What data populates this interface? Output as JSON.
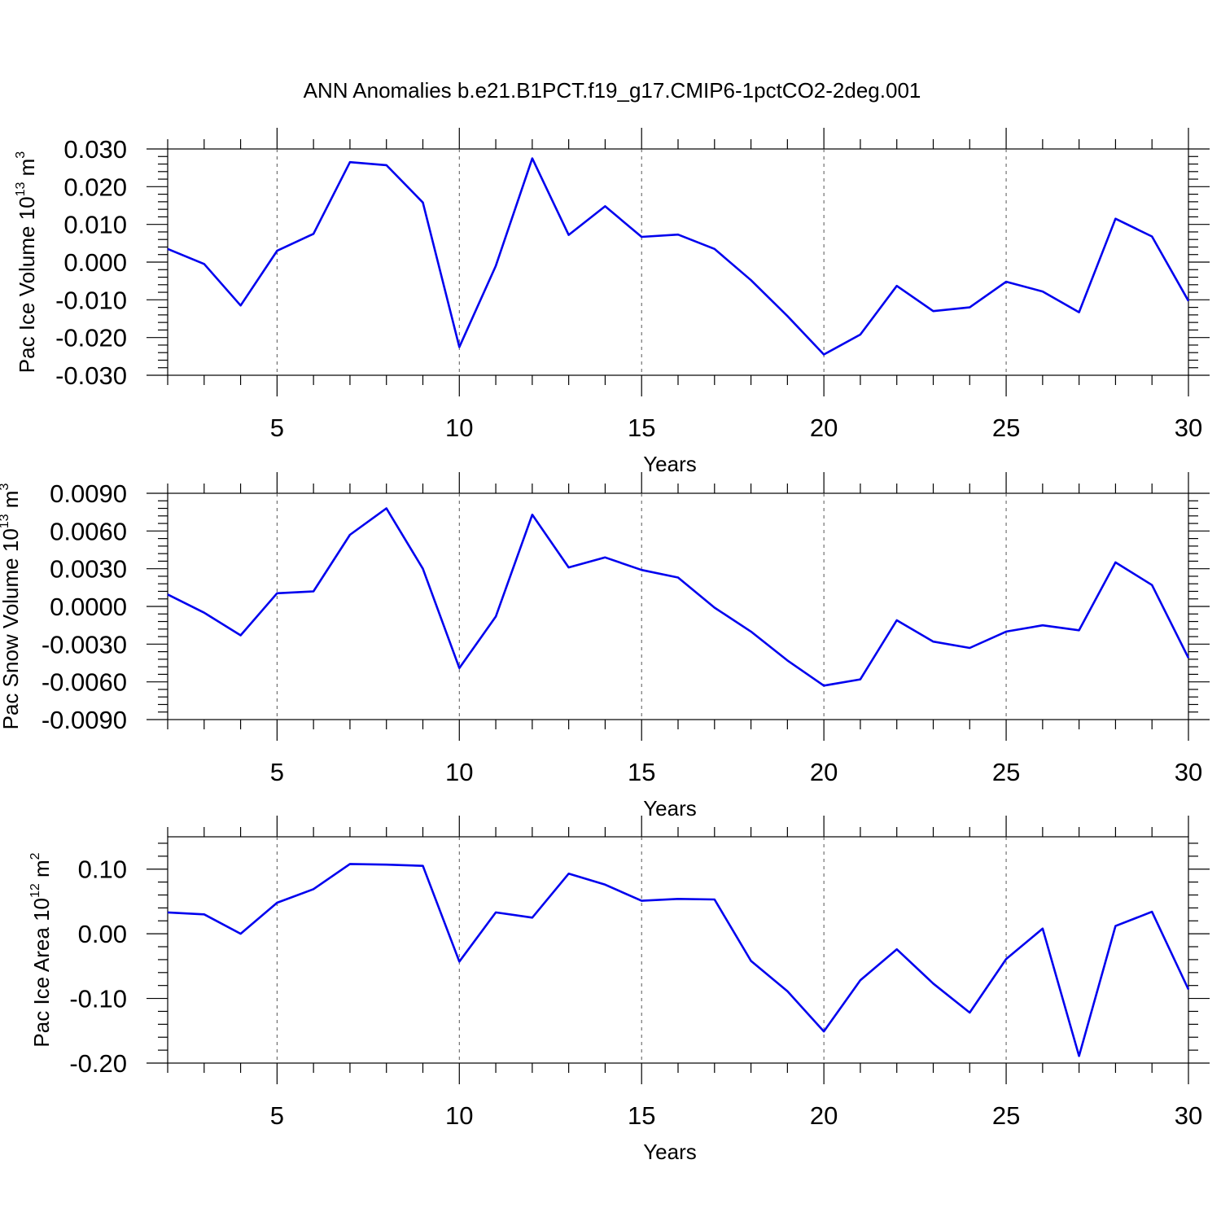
{
  "title": "ANN Anomalies b.e21.B1PCT.f19_g17.CMIP6-1pctCO2-2deg.001",
  "chart_data": [
    {
      "type": "line",
      "title": "ANN Anomalies b.e21.B1PCT.f19_g17.CMIP6-1pctCO2-2deg.001",
      "xlabel": "Years",
      "ylabel_main": "Pac Ice Volume 10",
      "ylabel_exp": "13",
      "ylabel_unit": "m",
      "ylabel_unit_exp": "3",
      "xlim": [
        2,
        30
      ],
      "ylim": [
        -0.03,
        0.03
      ],
      "x_ticks": [
        "5",
        "10",
        "15",
        "20",
        "25",
        "30"
      ],
      "x_tick_values": [
        5,
        10,
        15,
        20,
        25,
        30
      ],
      "y_ticks": [
        "-0.030",
        "-0.020",
        "-0.010",
        "0.000",
        "0.010",
        "0.020",
        "0.030"
      ],
      "y_tick_values": [
        -0.03,
        -0.02,
        -0.01,
        0.0,
        0.01,
        0.02,
        0.03
      ],
      "grid": "vertical dashed at major x ticks",
      "color": "#0000ee",
      "x": [
        2,
        3,
        4,
        5,
        6,
        7,
        8,
        9,
        10,
        11,
        12,
        13,
        14,
        15,
        16,
        17,
        18,
        19,
        20,
        21,
        22,
        23,
        24,
        25,
        26,
        27,
        28,
        29,
        30
      ],
      "values": [
        0.0035,
        -0.0005,
        -0.0115,
        0.003,
        0.0075,
        0.0265,
        0.0257,
        0.0158,
        -0.0225,
        -0.001,
        0.0275,
        0.0072,
        0.0148,
        0.0067,
        0.0073,
        0.0035,
        -0.0048,
        -0.0143,
        -0.0245,
        -0.0192,
        -0.0063,
        -0.013,
        -0.012,
        -0.0052,
        -0.0078,
        -0.0133,
        0.0115,
        0.0068,
        -0.0103
      ]
    },
    {
      "type": "line",
      "xlabel": "Years",
      "ylabel_main": "Pac Snow Volume 10",
      "ylabel_exp": "13",
      "ylabel_unit": "m",
      "ylabel_unit_exp": "3",
      "xlim": [
        2,
        30
      ],
      "ylim": [
        -0.009,
        0.009
      ],
      "x_ticks": [
        "5",
        "10",
        "15",
        "20",
        "25",
        "30"
      ],
      "x_tick_values": [
        5,
        10,
        15,
        20,
        25,
        30
      ],
      "y_ticks": [
        "-0.0090",
        "-0.0060",
        "-0.0030",
        "0.0000",
        "0.0030",
        "0.0060",
        "0.0090"
      ],
      "y_tick_values": [
        -0.009,
        -0.006,
        -0.003,
        0.0,
        0.003,
        0.006,
        0.009
      ],
      "grid": "vertical dashed at major x ticks",
      "color": "#0000ee",
      "x": [
        2,
        3,
        4,
        5,
        6,
        7,
        8,
        9,
        10,
        11,
        12,
        13,
        14,
        15,
        16,
        17,
        18,
        19,
        20,
        21,
        22,
        23,
        24,
        25,
        26,
        27,
        28,
        29,
        30
      ],
      "values": [
        0.00095,
        -0.0005,
        -0.0023,
        0.00105,
        0.0012,
        0.0057,
        0.0078,
        0.003,
        -0.0049,
        -0.0008,
        0.0073,
        0.0031,
        0.0039,
        0.0029,
        0.0023,
        -0.0001,
        -0.002,
        -0.0043,
        -0.0063,
        -0.0058,
        -0.0011,
        -0.0028,
        -0.0033,
        -0.002,
        -0.0015,
        -0.0019,
        0.0035,
        0.0017,
        -0.0041
      ]
    },
    {
      "type": "line",
      "xlabel": "Years",
      "ylabel_main": "Pac Ice Area 10",
      "ylabel_exp": "12",
      "ylabel_unit": "m",
      "ylabel_unit_exp": "2",
      "xlim": [
        2,
        30
      ],
      "ylim": [
        -0.2,
        0.15
      ],
      "x_ticks": [
        "5",
        "10",
        "15",
        "20",
        "25",
        "30"
      ],
      "x_tick_values": [
        5,
        10,
        15,
        20,
        25,
        30
      ],
      "y_ticks": [
        "-0.20",
        "-0.10",
        "0.00",
        "0.10"
      ],
      "y_tick_values": [
        -0.2,
        -0.1,
        0.0,
        0.1
      ],
      "grid": "vertical dashed at major x ticks",
      "color": "#0000ee",
      "x": [
        2,
        3,
        4,
        5,
        6,
        7,
        8,
        9,
        10,
        11,
        12,
        13,
        14,
        15,
        16,
        17,
        18,
        19,
        20,
        21,
        22,
        23,
        24,
        25,
        26,
        27,
        28,
        29,
        30
      ],
      "values": [
        0.033,
        0.03,
        0.0,
        0.048,
        0.069,
        0.108,
        0.107,
        0.105,
        -0.043,
        0.033,
        0.025,
        0.093,
        0.076,
        0.051,
        0.054,
        0.053,
        -0.042,
        -0.089,
        -0.151,
        -0.072,
        -0.024,
        -0.077,
        -0.122,
        -0.039,
        0.008,
        -0.189,
        0.012,
        0.034,
        -0.086
      ]
    }
  ]
}
